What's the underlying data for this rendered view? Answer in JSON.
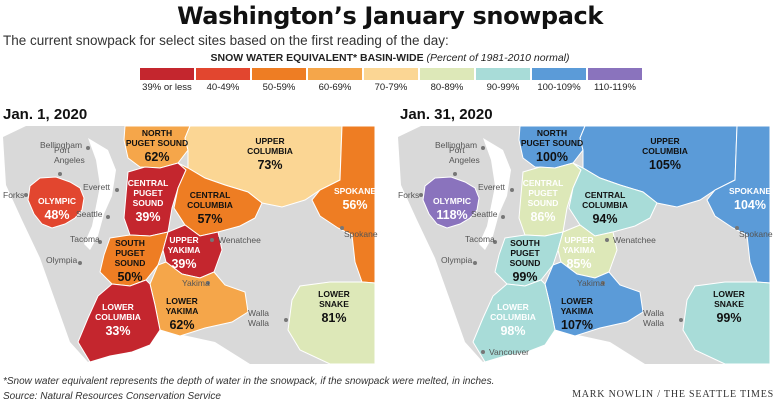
{
  "title": "Washington’s January snowpack",
  "subtitle": "The current snowpack for select sites based on the first reading of the day:",
  "legend": {
    "heading_bold": "SNOW WATER EQUIVALENT* BASIN-WIDE",
    "heading_italic": "(Percent of 1981-2010 normal)",
    "items": [
      {
        "label": "39% or less",
        "color": "#c4262e"
      },
      {
        "label": "40-49%",
        "color": "#e2462f"
      },
      {
        "label": "50-59%",
        "color": "#ee7d23"
      },
      {
        "label": "60-69%",
        "color": "#f5a64a"
      },
      {
        "label": "70-79%",
        "color": "#fbd694"
      },
      {
        "label": "80-89%",
        "color": "#dde8b8"
      },
      {
        "label": "90-99%",
        "color": "#a8dcd8"
      },
      {
        "label": "100-109%",
        "color": "#5b9bd8"
      },
      {
        "label": "110-119%",
        "color": "#8a73bd"
      }
    ]
  },
  "maps": [
    {
      "date": "Jan. 1, 2020",
      "regions": {
        "north_puget": {
          "name": [
            "NORTH",
            "PUGET SOUND"
          ],
          "value": "62%"
        },
        "upper_columbia": {
          "name": [
            "UPPER",
            "COLUMBIA"
          ],
          "value": "73%"
        },
        "olympic": {
          "name": [
            "OLYMPIC"
          ],
          "value": "48%"
        },
        "central_puget": {
          "name": [
            "CENTRAL",
            "PUGET",
            "SOUND"
          ],
          "value": "39%"
        },
        "central_columbia": {
          "name": [
            "CENTRAL",
            "COLUMBIA"
          ],
          "value": "57%"
        },
        "spokane": {
          "name": [
            "SPOKANE"
          ],
          "value": "56%"
        },
        "south_puget": {
          "name": [
            "SOUTH",
            "PUGET",
            "SOUND"
          ],
          "value": "50%"
        },
        "upper_yakima": {
          "name": [
            "UPPER",
            "YAKIMA"
          ],
          "value": "39%"
        },
        "lower_yakima": {
          "name": [
            "LOWER",
            "YAKIMA"
          ],
          "value": "62%"
        },
        "lower_columbia": {
          "name": [
            "LOWER",
            "COLUMBIA"
          ],
          "value": "33%"
        },
        "lower_snake": {
          "name": [
            "LOWER",
            "SNAKE"
          ],
          "value": "81%"
        }
      },
      "colors": {
        "north_puget": "#f5a64a",
        "upper_columbia": "#fbd694",
        "olympic": "#e2462f",
        "central_puget": "#c4262e",
        "central_columbia": "#ee7d23",
        "spokane": "#ee7d23",
        "south_puget": "#ee7d23",
        "upper_yakima": "#c4262e",
        "lower_yakima": "#f5a64a",
        "lower_columbia": "#c4262e",
        "lower_snake": "#dde8b8"
      },
      "cities": [
        "Bellingham",
        "Port Angeles",
        "Forks",
        "Everett",
        "Seattle",
        "Tacoma",
        "Olympia",
        "Wenatchee",
        "Spokane",
        "Yakima",
        "Walla Walla"
      ]
    },
    {
      "date": "Jan. 31, 2020",
      "regions": {
        "north_puget": {
          "name": [
            "NORTH",
            "PUGET SOUND"
          ],
          "value": "100%"
        },
        "upper_columbia": {
          "name": [
            "UPPER",
            "COLUMBIA"
          ],
          "value": "105%"
        },
        "olympic": {
          "name": [
            "OLYMPIC"
          ],
          "value": "118%"
        },
        "central_puget": {
          "name": [
            "CENTRAL",
            "PUGET",
            "SOUND"
          ],
          "value": "86%"
        },
        "central_columbia": {
          "name": [
            "CENTRAL",
            "COLUMBIA"
          ],
          "value": "94%"
        },
        "spokane": {
          "name": [
            "SPOKANE"
          ],
          "value": "104%"
        },
        "south_puget": {
          "name": [
            "SOUTH",
            "PUGET",
            "SOUND"
          ],
          "value": "99%"
        },
        "upper_yakima": {
          "name": [
            "UPPER",
            "YAKIMA"
          ],
          "value": "85%"
        },
        "lower_yakima": {
          "name": [
            "LOWER",
            "YAKIMA"
          ],
          "value": "107%"
        },
        "lower_columbia": {
          "name": [
            "LOWER",
            "COLUMBIA"
          ],
          "value": "98%"
        },
        "lower_snake": {
          "name": [
            "LOWER",
            "SNAKE"
          ],
          "value": "99%"
        }
      },
      "colors": {
        "north_puget": "#5b9bd8",
        "upper_columbia": "#5b9bd8",
        "olympic": "#8a73bd",
        "central_puget": "#dde8b8",
        "central_columbia": "#a8dcd8",
        "spokane": "#5b9bd8",
        "south_puget": "#a8dcd8",
        "upper_yakima": "#dde8b8",
        "lower_yakima": "#5b9bd8",
        "lower_columbia": "#a8dcd8",
        "lower_snake": "#a8dcd8"
      },
      "cities": [
        "Bellingham",
        "Port Angeles",
        "Forks",
        "Everett",
        "Seattle",
        "Tacoma",
        "Olympia",
        "Wenatchee",
        "Spokane",
        "Yakima",
        "Walla Walla",
        "Vancouver"
      ]
    }
  ],
  "footnote": "*Snow water equivalent represents the depth of water in the snowpack, if the snowpack were melted, in inches.",
  "source": "Source: Natural Resources Conservation Service",
  "credit": "MARK NOWLIN / THE SEATTLE TIMES",
  "colors": {
    "state_fill": "#d9d9d9",
    "water": "#ffffff",
    "border": "#ffffff"
  }
}
